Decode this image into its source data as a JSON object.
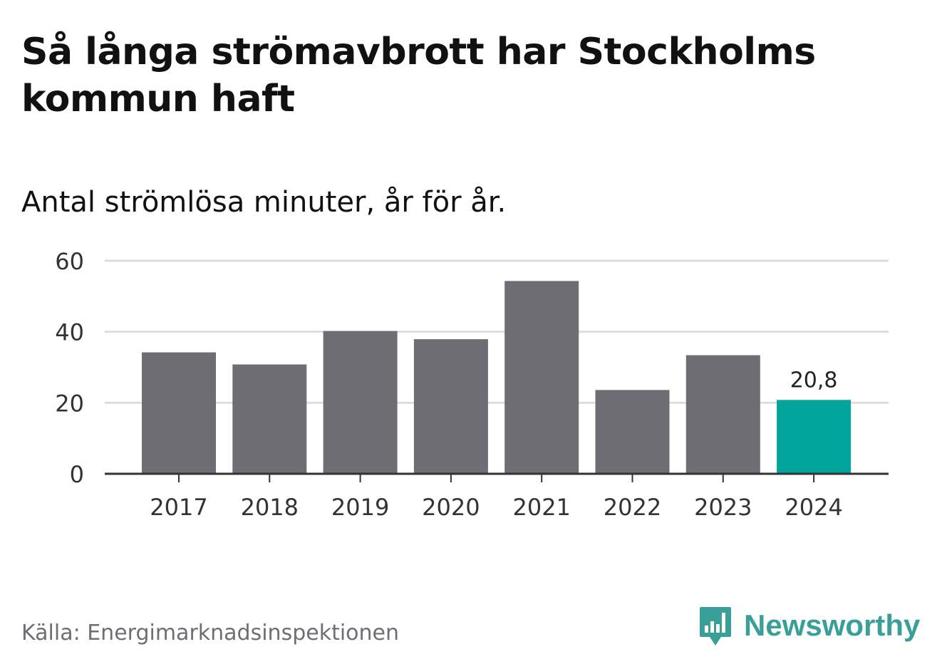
{
  "title": "Så långa strömavbrott har Stockholms kommun haft",
  "subtitle": "Antal strömlösa minuter, år för år.",
  "source": "Källa: Energimarknadsinspektionen",
  "brand": {
    "name": "Newsworthy",
    "icon": "newsworthy-logo-icon",
    "color": "#3a9e99"
  },
  "colors": {
    "bar": "#6e6d73",
    "highlight": "#00a49a",
    "grid": "#dddddd",
    "axis": "#333333"
  },
  "chart_data": {
    "type": "bar",
    "title": "Så långa strömavbrott har Stockholms kommun haft",
    "subtitle": "Antal strömlösa minuter, år för år.",
    "categories": [
      "2017",
      "2018",
      "2019",
      "2020",
      "2021",
      "2022",
      "2023",
      "2024"
    ],
    "values": [
      34.2,
      30.8,
      40.2,
      37.9,
      54.3,
      23.6,
      33.4,
      20.8
    ],
    "highlight_index": 7,
    "data_labels": [
      {
        "index": 7,
        "text": "20,8"
      }
    ],
    "xlabel": "",
    "ylabel": "",
    "ylim": [
      0,
      60
    ],
    "yticks": [
      0,
      20,
      40,
      60
    ],
    "grid": true
  }
}
